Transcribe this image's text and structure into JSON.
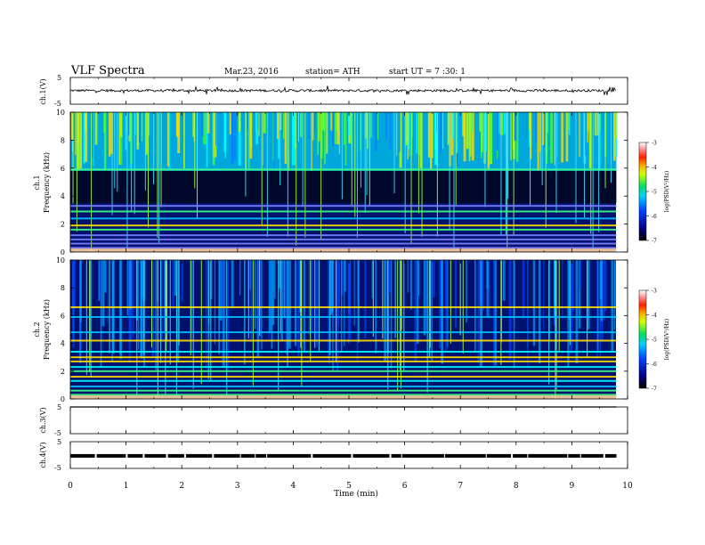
{
  "header": {
    "title": "VLF  Spectra",
    "date": "Mar.23, 2016",
    "station": "station= ATH",
    "start": "start  UT  =   7  :30: 1"
  },
  "chart_data": [
    {
      "type": "line",
      "id": "ch1-waveform",
      "ylabel": "ch.1(V)",
      "ylim": [
        -5,
        5
      ],
      "yticks": [
        "5",
        "-5"
      ],
      "xlim": [
        0,
        10
      ],
      "level": 0.1,
      "note_values": "continuous noisy waveform near the zero line"
    },
    {
      "type": "heatmap",
      "id": "ch1-spectrogram",
      "ylabel_channel": "ch.1",
      "ylabel": "Frequency  (kHz)",
      "ylim": [
        0,
        10
      ],
      "yticks": [
        "0",
        "2",
        "4",
        "6",
        "8",
        "10"
      ],
      "xlim": [
        0,
        10
      ],
      "colorbar": {
        "label": "log(PSD(V²/Hz)",
        "range": [
          -7,
          -3
        ],
        "ticks": [
          "-3",
          "-4",
          "-5",
          "-6",
          "-7"
        ]
      },
      "bright_band_khz": [
        5.8,
        10
      ],
      "dark_band_khz": [
        3.5,
        5.8
      ],
      "lines_khz": [
        0.3,
        0.6,
        0.9,
        1.2,
        1.6,
        1.9,
        2.4,
        2.9,
        3.3,
        5.9
      ]
    },
    {
      "type": "heatmap",
      "id": "ch2-spectrogram",
      "ylabel_channel": "ch.2",
      "ylabel": "Frequency  (kHz)",
      "ylim": [
        0,
        10
      ],
      "yticks": [
        "0",
        "2",
        "4",
        "6",
        "8",
        "10"
      ],
      "xlim": [
        0,
        10
      ],
      "colorbar": {
        "label": "log(PSD(V²/Hz)",
        "range": [
          -7,
          -3
        ],
        "ticks": [
          "-3",
          "-4",
          "-5",
          "-6",
          "-7"
        ]
      },
      "lines_khz": [
        0.3,
        0.6,
        0.9,
        1.3,
        1.6,
        2.0,
        2.3,
        2.7,
        3.0,
        3.4,
        4.2,
        4.8,
        5.9,
        6.6
      ]
    },
    {
      "type": "line",
      "id": "ch3-waveform",
      "ylabel": "ch.3(V)",
      "ylim": [
        -5,
        5
      ],
      "yticks": [
        "5",
        "-5"
      ],
      "xlim": [
        0,
        10
      ],
      "level": 5,
      "note_values": "flat at the top of the range"
    },
    {
      "type": "line",
      "id": "ch4-waveform",
      "ylabel": "ch.4(V)",
      "ylim": [
        -5,
        5
      ],
      "yticks": [
        "5",
        "-5"
      ],
      "xlim": [
        0,
        10
      ],
      "level": -0.3,
      "note_values": "thick flat trace with periodic gaps"
    }
  ],
  "xaxis": {
    "label": "Time  (min)",
    "ticks": [
      "0",
      "1",
      "2",
      "3",
      "4",
      "5",
      "6",
      "7",
      "8",
      "9",
      "10"
    ],
    "data_end_min": 9.8
  }
}
